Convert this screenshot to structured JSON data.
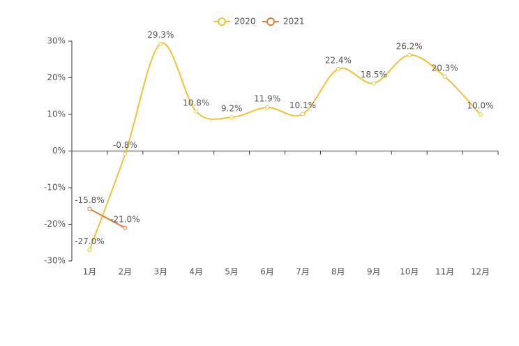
{
  "chart_data": {
    "type": "line",
    "categories": [
      "1月",
      "2月",
      "3月",
      "4月",
      "5月",
      "6月",
      "7月",
      "8月",
      "9月",
      "10月",
      "11月",
      "12月"
    ],
    "series": [
      {
        "name": "2020",
        "color": "#f3c136",
        "values": [
          -27.0,
          -0.8,
          29.3,
          10.8,
          9.2,
          11.9,
          10.1,
          22.4,
          18.5,
          26.2,
          20.3,
          10.0
        ],
        "value_labels": [
          "-27.0%",
          "-0.8%",
          "29.3%",
          "10.8%",
          "9.2%",
          "11.9%",
          "10.1%",
          "22.4%",
          "18.5%",
          "26.2%",
          "20.3%",
          "10.0%"
        ]
      },
      {
        "name": "2021",
        "color": "#e07b39",
        "values": [
          -15.8,
          -21.0,
          null,
          null,
          null,
          null,
          null,
          null,
          null,
          null,
          null,
          null
        ],
        "value_labels": [
          "-15.8%",
          "-21.0%",
          null,
          null,
          null,
          null,
          null,
          null,
          null,
          null,
          null,
          null
        ]
      }
    ],
    "ylim": [
      -30,
      30
    ],
    "yticks": [
      {
        "value": -30,
        "label": "-30%"
      },
      {
        "value": -20,
        "label": "-20%"
      },
      {
        "value": -10,
        "label": "-10%"
      },
      {
        "value": 0,
        "label": "0%"
      },
      {
        "value": 10,
        "label": "10%"
      },
      {
        "value": 20,
        "label": "20%"
      },
      {
        "value": 30,
        "label": "30%"
      }
    ],
    "smooth": true,
    "legend": "top"
  }
}
